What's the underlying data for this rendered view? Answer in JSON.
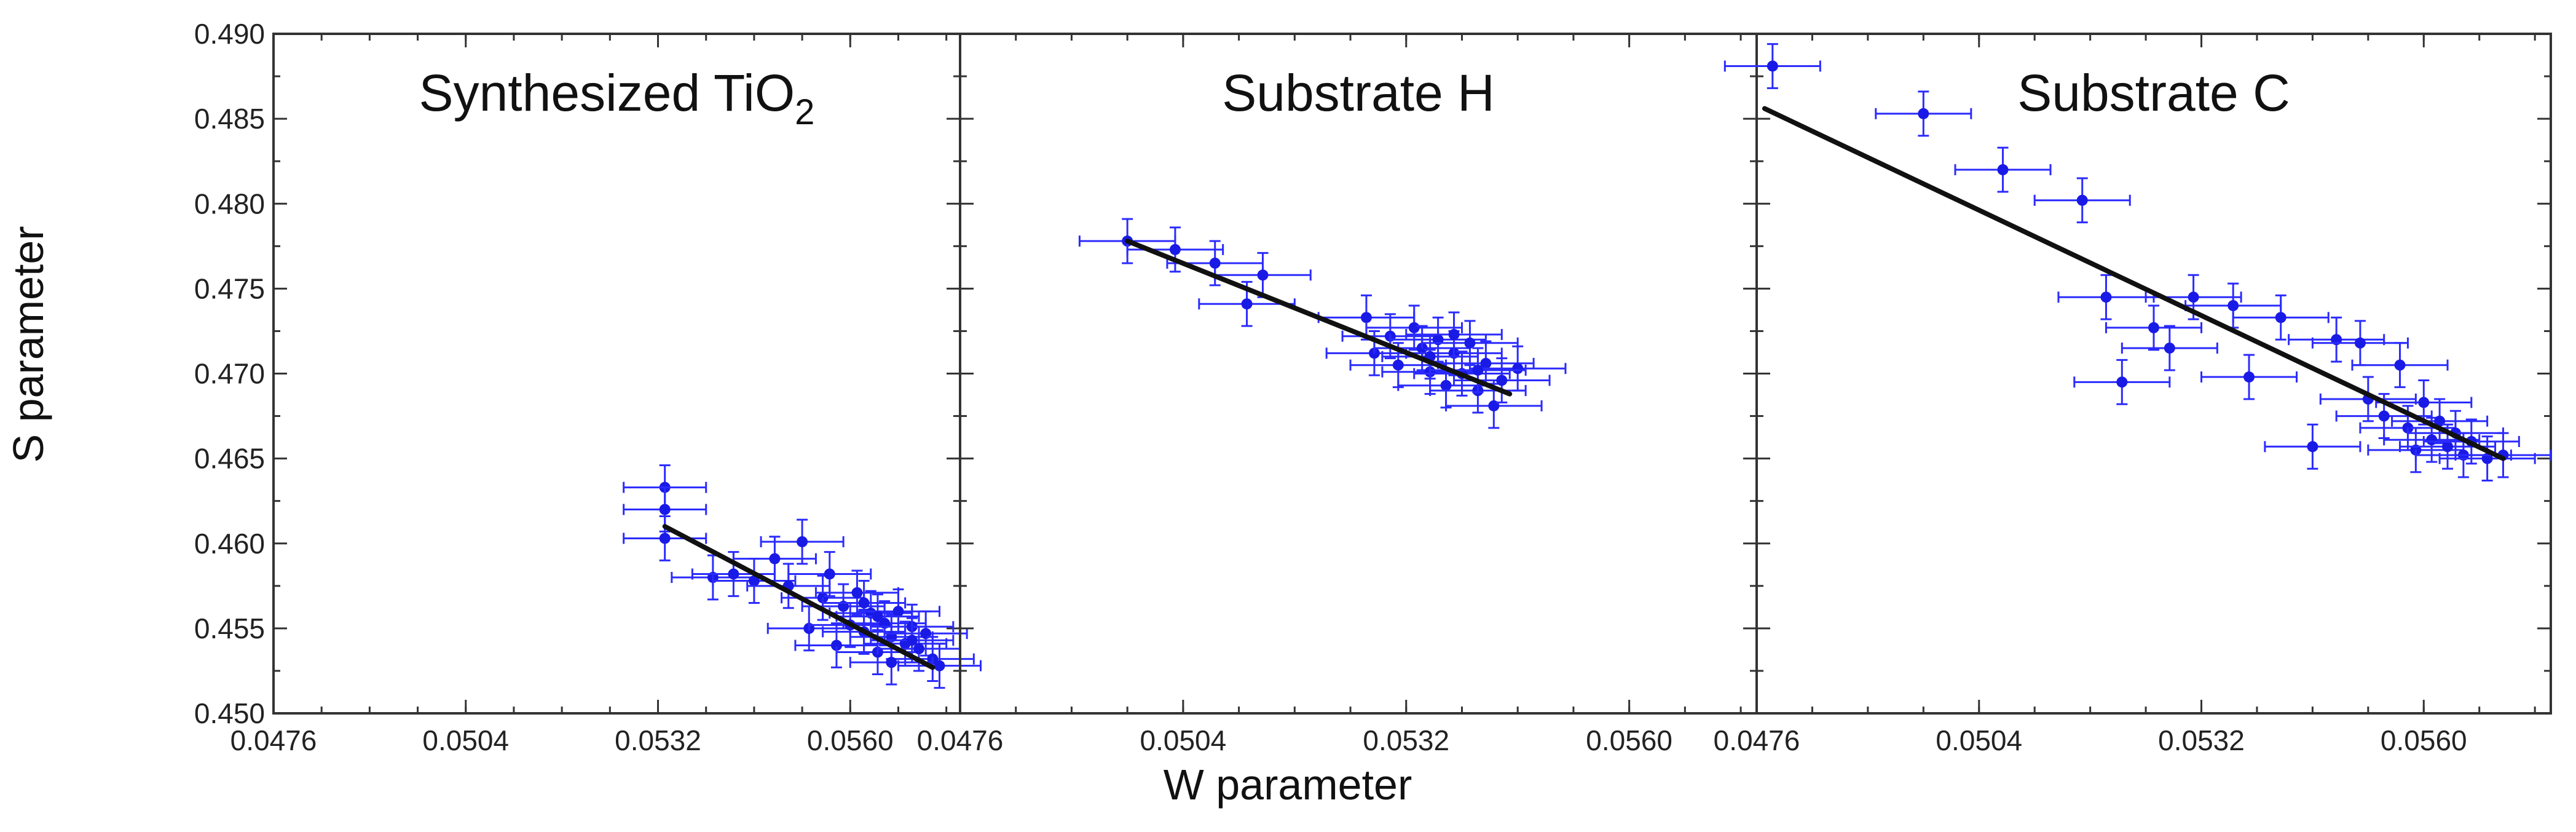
{
  "chart_data": [
    {
      "type": "scatter",
      "title": "Synthesized TiO",
      "title_sub": "2",
      "xlabel": "W parameter",
      "ylabel": "S parameter",
      "xlim": [
        0.0476,
        0.0576
      ],
      "ylim": [
        0.45,
        0.49
      ],
      "xticks": [
        "0.0476",
        "0.0504",
        "0.0532",
        "0.0560"
      ],
      "yticks": [
        "0.450",
        "0.455",
        "0.460",
        "0.465",
        "0.470",
        "0.475",
        "0.480",
        "0.485",
        "0.490"
      ],
      "fit_line": {
        "x": [
          0.0533,
          0.0572
        ],
        "y": [
          0.461,
          0.4527
        ]
      },
      "error": {
        "x": 0.0006,
        "y": 0.0013
      },
      "points": [
        {
          "x": 0.0533,
          "y": 0.4633
        },
        {
          "x": 0.0533,
          "y": 0.462
        },
        {
          "x": 0.0533,
          "y": 0.4603
        },
        {
          "x": 0.054,
          "y": 0.458
        },
        {
          "x": 0.0543,
          "y": 0.4582
        },
        {
          "x": 0.0546,
          "y": 0.4578
        },
        {
          "x": 0.0549,
          "y": 0.4591
        },
        {
          "x": 0.0551,
          "y": 0.4575
        },
        {
          "x": 0.0553,
          "y": 0.4601
        },
        {
          "x": 0.0554,
          "y": 0.455
        },
        {
          "x": 0.0556,
          "y": 0.4568
        },
        {
          "x": 0.0557,
          "y": 0.4582
        },
        {
          "x": 0.0558,
          "y": 0.454
        },
        {
          "x": 0.0559,
          "y": 0.4563
        },
        {
          "x": 0.056,
          "y": 0.4552
        },
        {
          "x": 0.0561,
          "y": 0.4571
        },
        {
          "x": 0.0562,
          "y": 0.4548
        },
        {
          "x": 0.0563,
          "y": 0.4559
        },
        {
          "x": 0.0564,
          "y": 0.4536
        },
        {
          "x": 0.0565,
          "y": 0.4553
        },
        {
          "x": 0.0566,
          "y": 0.4545
        },
        {
          "x": 0.0567,
          "y": 0.456
        },
        {
          "x": 0.0568,
          "y": 0.4541
        },
        {
          "x": 0.0569,
          "y": 0.4551
        },
        {
          "x": 0.057,
          "y": 0.4538
        },
        {
          "x": 0.0571,
          "y": 0.4547
        },
        {
          "x": 0.0572,
          "y": 0.4532
        },
        {
          "x": 0.0573,
          "y": 0.4528
        },
        {
          "x": 0.0562,
          "y": 0.4565
        },
        {
          "x": 0.0566,
          "y": 0.453
        },
        {
          "x": 0.0569,
          "y": 0.4543
        },
        {
          "x": 0.0564,
          "y": 0.4557
        }
      ]
    },
    {
      "type": "scatter",
      "title": "Substrate H",
      "xlabel": "W parameter",
      "xlim": [
        0.0476,
        0.0576
      ],
      "ylim": [
        0.45,
        0.49
      ],
      "xticks": [
        "0.0476",
        "0.0504",
        "0.0532",
        "0.0560"
      ],
      "fit_line": {
        "x": [
          0.0497,
          0.0545
        ],
        "y": [
          0.4778,
          0.4688
        ]
      },
      "error": {
        "x": 0.0006,
        "y": 0.0013
      },
      "points": [
        {
          "x": 0.0497,
          "y": 0.4778
        },
        {
          "x": 0.0503,
          "y": 0.4773
        },
        {
          "x": 0.0508,
          "y": 0.4765
        },
        {
          "x": 0.0512,
          "y": 0.4741
        },
        {
          "x": 0.0514,
          "y": 0.4758
        },
        {
          "x": 0.0527,
          "y": 0.4733
        },
        {
          "x": 0.0528,
          "y": 0.4712
        },
        {
          "x": 0.053,
          "y": 0.4722
        },
        {
          "x": 0.0531,
          "y": 0.4705
        },
        {
          "x": 0.0533,
          "y": 0.4727
        },
        {
          "x": 0.0534,
          "y": 0.4715
        },
        {
          "x": 0.0535,
          "y": 0.4701
        },
        {
          "x": 0.0536,
          "y": 0.472
        },
        {
          "x": 0.0537,
          "y": 0.4693
        },
        {
          "x": 0.0538,
          "y": 0.4712
        },
        {
          "x": 0.0539,
          "y": 0.47
        },
        {
          "x": 0.054,
          "y": 0.4718
        },
        {
          "x": 0.0541,
          "y": 0.469
        },
        {
          "x": 0.0542,
          "y": 0.4706
        },
        {
          "x": 0.0543,
          "y": 0.4681
        },
        {
          "x": 0.0544,
          "y": 0.4696
        },
        {
          "x": 0.0546,
          "y": 0.4703
        },
        {
          "x": 0.0535,
          "y": 0.471
        },
        {
          "x": 0.0538,
          "y": 0.4723
        },
        {
          "x": 0.0541,
          "y": 0.4702
        }
      ]
    },
    {
      "type": "scatter",
      "title": "Substrate C",
      "xlabel": "W parameter",
      "xlim": [
        0.0476,
        0.0576
      ],
      "ylim": [
        0.45,
        0.49
      ],
      "xticks": [
        "0.0476",
        "0.0504",
        "0.0532",
        "0.0560"
      ],
      "fit_line": {
        "x": [
          0.0477,
          0.057
        ],
        "y": [
          0.4856,
          0.465
        ]
      },
      "error": {
        "x": 0.0006,
        "y": 0.0013
      },
      "points": [
        {
          "x": 0.0478,
          "y": 0.4881
        },
        {
          "x": 0.0497,
          "y": 0.4853
        },
        {
          "x": 0.0507,
          "y": 0.482
        },
        {
          "x": 0.0517,
          "y": 0.4802
        },
        {
          "x": 0.052,
          "y": 0.4745
        },
        {
          "x": 0.0522,
          "y": 0.4695
        },
        {
          "x": 0.0526,
          "y": 0.4727
        },
        {
          "x": 0.0528,
          "y": 0.4715
        },
        {
          "x": 0.0531,
          "y": 0.4745
        },
        {
          "x": 0.0536,
          "y": 0.474
        },
        {
          "x": 0.0538,
          "y": 0.4698
        },
        {
          "x": 0.0542,
          "y": 0.4733
        },
        {
          "x": 0.0546,
          "y": 0.4657
        },
        {
          "x": 0.0549,
          "y": 0.472
        },
        {
          "x": 0.0552,
          "y": 0.4718
        },
        {
          "x": 0.0553,
          "y": 0.4685
        },
        {
          "x": 0.0555,
          "y": 0.4675
        },
        {
          "x": 0.0557,
          "y": 0.4705
        },
        {
          "x": 0.0558,
          "y": 0.4668
        },
        {
          "x": 0.0559,
          "y": 0.4655
        },
        {
          "x": 0.056,
          "y": 0.4683
        },
        {
          "x": 0.0561,
          "y": 0.4661
        },
        {
          "x": 0.0562,
          "y": 0.4672
        },
        {
          "x": 0.0563,
          "y": 0.4657
        },
        {
          "x": 0.0564,
          "y": 0.4665
        },
        {
          "x": 0.0565,
          "y": 0.4652
        },
        {
          "x": 0.0566,
          "y": 0.466
        },
        {
          "x": 0.0568,
          "y": 0.465
        },
        {
          "x": 0.057,
          "y": 0.4652
        }
      ]
    }
  ]
}
